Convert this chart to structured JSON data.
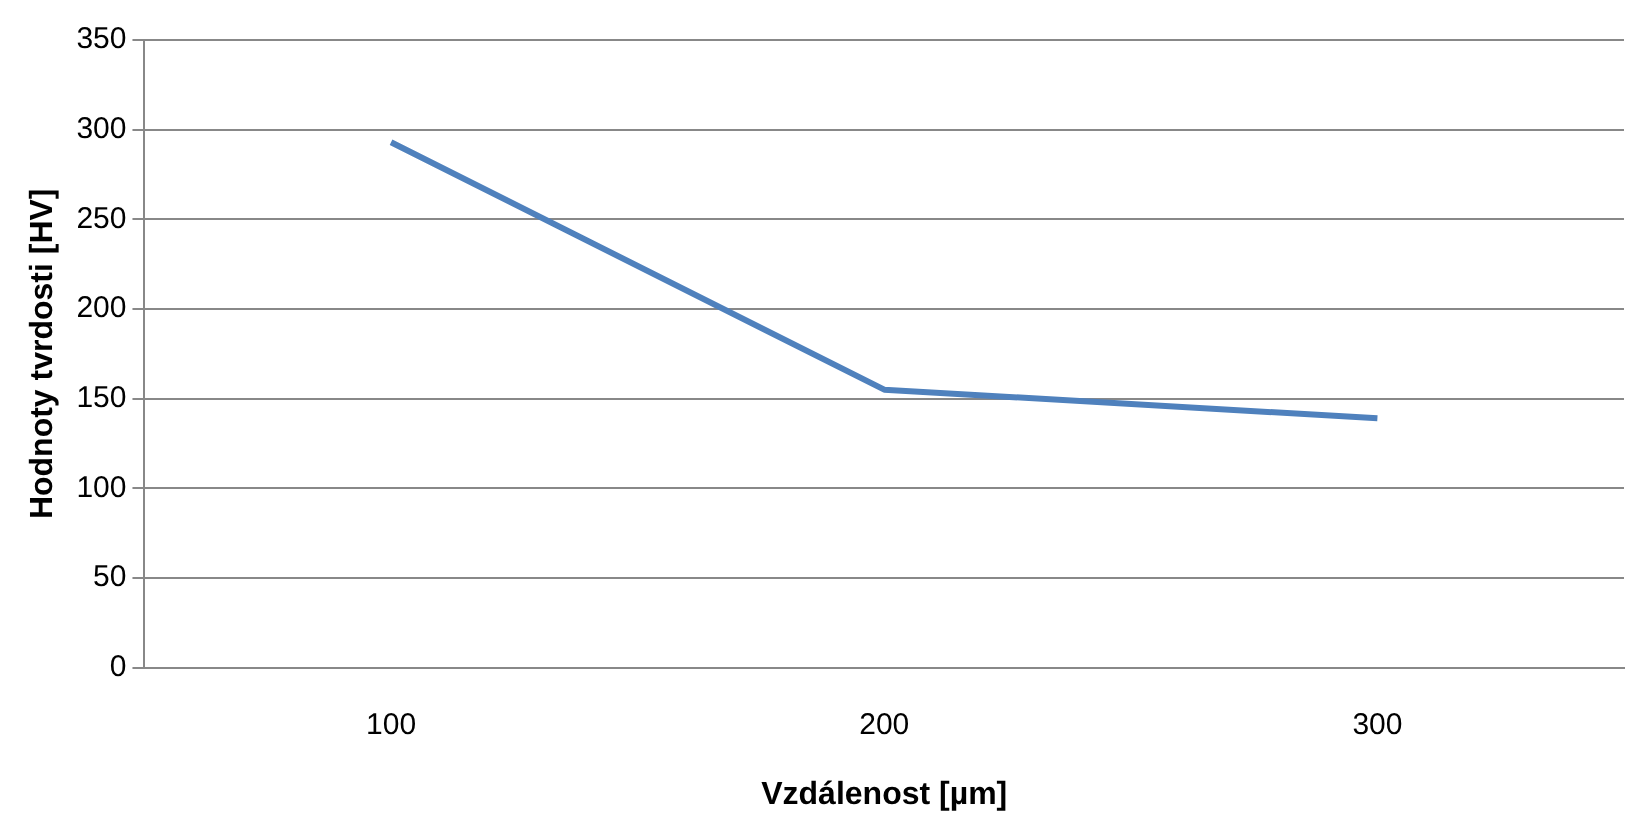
{
  "chart_data": {
    "type": "line",
    "xlabel": "Vzdálenost [µm]",
    "ylabel": "Hodnoty tvrdosti [HV]",
    "categories": [
      "100",
      "200",
      "300"
    ],
    "series": [
      {
        "color": "#4f81bd",
        "values": [
          293,
          155,
          139
        ]
      }
    ],
    "ylim": [
      0,
      350
    ],
    "yticks": [
      0,
      50,
      100,
      150,
      200,
      250,
      300,
      350
    ],
    "grid": "y",
    "legend": false,
    "marker": "none",
    "line_style": "solid"
  }
}
